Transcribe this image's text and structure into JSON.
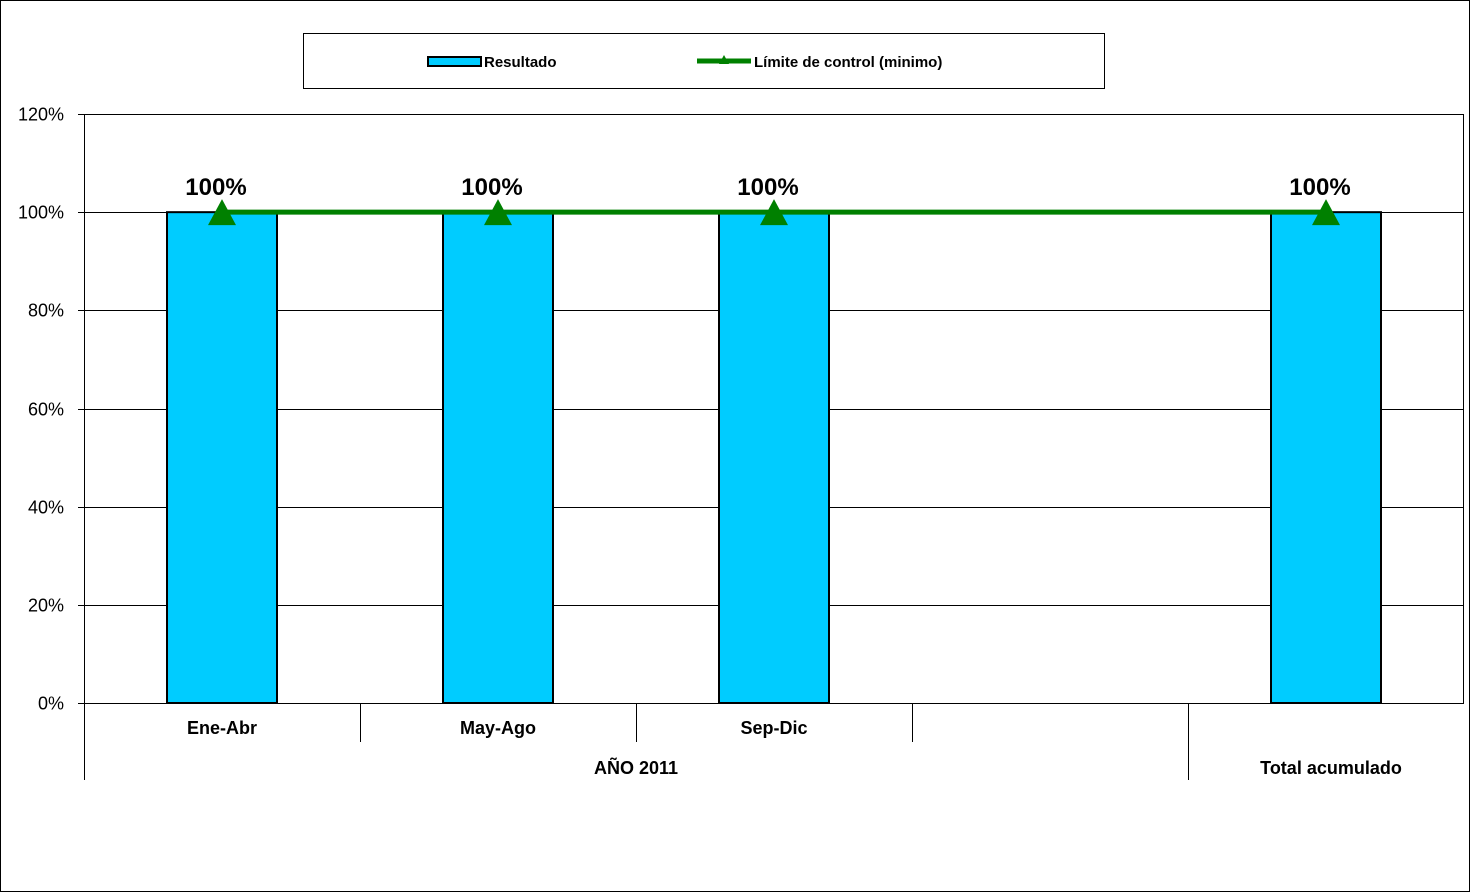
{
  "chart_data": {
    "type": "bar",
    "categories": [
      "Ene-Abr",
      "May-Ago",
      "Sep-Dic",
      "",
      "Total acumulado"
    ],
    "category_groups": [
      {
        "label": "AÑO 2011",
        "from": 0,
        "to": 3
      },
      {
        "label": "Total acumulado",
        "from": 4,
        "to": 4
      }
    ],
    "series": [
      {
        "name": "Resultado",
        "type": "bar",
        "values": [
          100,
          100,
          100,
          null,
          100
        ],
        "color": "#00CCFF"
      },
      {
        "name": "Límite de control (minimo)",
        "type": "line",
        "marker": "triangle",
        "values": [
          100,
          100,
          100,
          100,
          100
        ],
        "color": "#008000"
      }
    ],
    "data_labels": [
      "100%",
      "100%",
      "100%",
      "",
      "100%"
    ],
    "y_ticks": [
      "0%",
      "20%",
      "40%",
      "60%",
      "80%",
      "100%",
      "120%"
    ],
    "ylim": [
      0,
      120
    ],
    "y_unit": "%",
    "grid": true,
    "legend_position": "top",
    "title": "",
    "xlabel": "",
    "ylabel": ""
  }
}
